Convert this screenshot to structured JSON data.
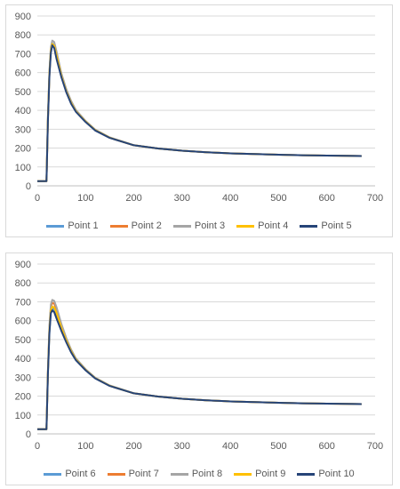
{
  "chart_data": [
    {
      "type": "line",
      "title": "",
      "xlabel": "",
      "ylabel": "",
      "xlim": [
        0,
        700
      ],
      "ylim": [
        0,
        900
      ],
      "xticks": [
        0,
        100,
        200,
        300,
        400,
        500,
        600,
        700
      ],
      "yticks": [
        0,
        100,
        200,
        300,
        400,
        500,
        600,
        700,
        800,
        900
      ],
      "grid": "horizontal",
      "legend_position": "bottom",
      "x": [
        0,
        10,
        19,
        22,
        25,
        28,
        31,
        35,
        40,
        50,
        60,
        70,
        80,
        100,
        120,
        150,
        200,
        250,
        300,
        350,
        400,
        450,
        500,
        550,
        600,
        672
      ],
      "series": [
        {
          "name": "Point 1",
          "color": "#5B9BD5",
          "values": [
            25,
            25,
            25,
            360,
            600,
            720,
            755,
            745,
            690,
            580,
            500,
            440,
            395,
            340,
            295,
            255,
            215,
            198,
            186,
            178,
            172,
            168,
            165,
            162,
            160,
            158
          ]
        },
        {
          "name": "Point 2",
          "color": "#ED7D31",
          "values": [
            25,
            25,
            25,
            350,
            590,
            715,
            750,
            740,
            688,
            580,
            500,
            440,
            395,
            340,
            295,
            255,
            215,
            198,
            186,
            178,
            172,
            168,
            165,
            162,
            160,
            158
          ]
        },
        {
          "name": "Point 3",
          "color": "#A5A5A5",
          "values": [
            25,
            25,
            25,
            370,
            610,
            735,
            770,
            762,
            710,
            595,
            512,
            450,
            402,
            344,
            298,
            257,
            216,
            198,
            186,
            178,
            172,
            168,
            165,
            162,
            160,
            158
          ]
        },
        {
          "name": "Point 4",
          "color": "#FFC000",
          "values": [
            25,
            25,
            25,
            355,
            595,
            718,
            752,
            742,
            690,
            582,
            500,
            440,
            395,
            340,
            295,
            255,
            215,
            198,
            186,
            178,
            172,
            168,
            165,
            162,
            160,
            158
          ]
        },
        {
          "name": "Point 5",
          "color": "#264478",
          "values": [
            25,
            25,
            25,
            340,
            580,
            705,
            745,
            730,
            670,
            575,
            495,
            435,
            392,
            338,
            293,
            254,
            215,
            198,
            186,
            178,
            172,
            168,
            165,
            162,
            160,
            158
          ]
        }
      ]
    },
    {
      "type": "line",
      "title": "",
      "xlabel": "",
      "ylabel": "",
      "xlim": [
        0,
        700
      ],
      "ylim": [
        0,
        900
      ],
      "xticks": [
        0,
        100,
        200,
        300,
        400,
        500,
        600,
        700
      ],
      "yticks": [
        0,
        100,
        200,
        300,
        400,
        500,
        600,
        700,
        800,
        900
      ],
      "grid": "horizontal",
      "legend_position": "bottom",
      "x": [
        0,
        10,
        19,
        22,
        25,
        28,
        31,
        35,
        40,
        50,
        60,
        70,
        80,
        100,
        120,
        150,
        200,
        250,
        300,
        350,
        400,
        450,
        500,
        550,
        600,
        672
      ],
      "series": [
        {
          "name": "Point 6",
          "color": "#5B9BD5",
          "values": [
            25,
            25,
            25,
            320,
            540,
            645,
            665,
            660,
            630,
            555,
            490,
            435,
            392,
            338,
            295,
            255,
            215,
            198,
            186,
            178,
            172,
            168,
            165,
            162,
            160,
            158
          ]
        },
        {
          "name": "Point 7",
          "color": "#ED7D31",
          "values": [
            25,
            25,
            25,
            330,
            560,
            670,
            695,
            690,
            655,
            570,
            500,
            440,
            395,
            340,
            296,
            255,
            215,
            198,
            186,
            178,
            172,
            168,
            165,
            162,
            160,
            158
          ]
        },
        {
          "name": "Point 8",
          "color": "#A5A5A5",
          "values": [
            25,
            25,
            25,
            340,
            575,
            685,
            710,
            705,
            670,
            582,
            508,
            447,
            400,
            343,
            298,
            257,
            216,
            198,
            186,
            178,
            172,
            168,
            165,
            162,
            160,
            158
          ]
        },
        {
          "name": "Point 9",
          "color": "#FFC000",
          "values": [
            25,
            25,
            25,
            325,
            550,
            655,
            675,
            670,
            640,
            562,
            495,
            438,
            394,
            339,
            295,
            255,
            215,
            198,
            186,
            178,
            172,
            168,
            165,
            162,
            160,
            158
          ]
        },
        {
          "name": "Point 10",
          "color": "#264478",
          "values": [
            25,
            25,
            25,
            315,
            535,
            640,
            655,
            645,
            610,
            545,
            485,
            432,
            390,
            337,
            294,
            254,
            215,
            198,
            186,
            178,
            172,
            168,
            165,
            162,
            160,
            158
          ]
        }
      ]
    }
  ]
}
